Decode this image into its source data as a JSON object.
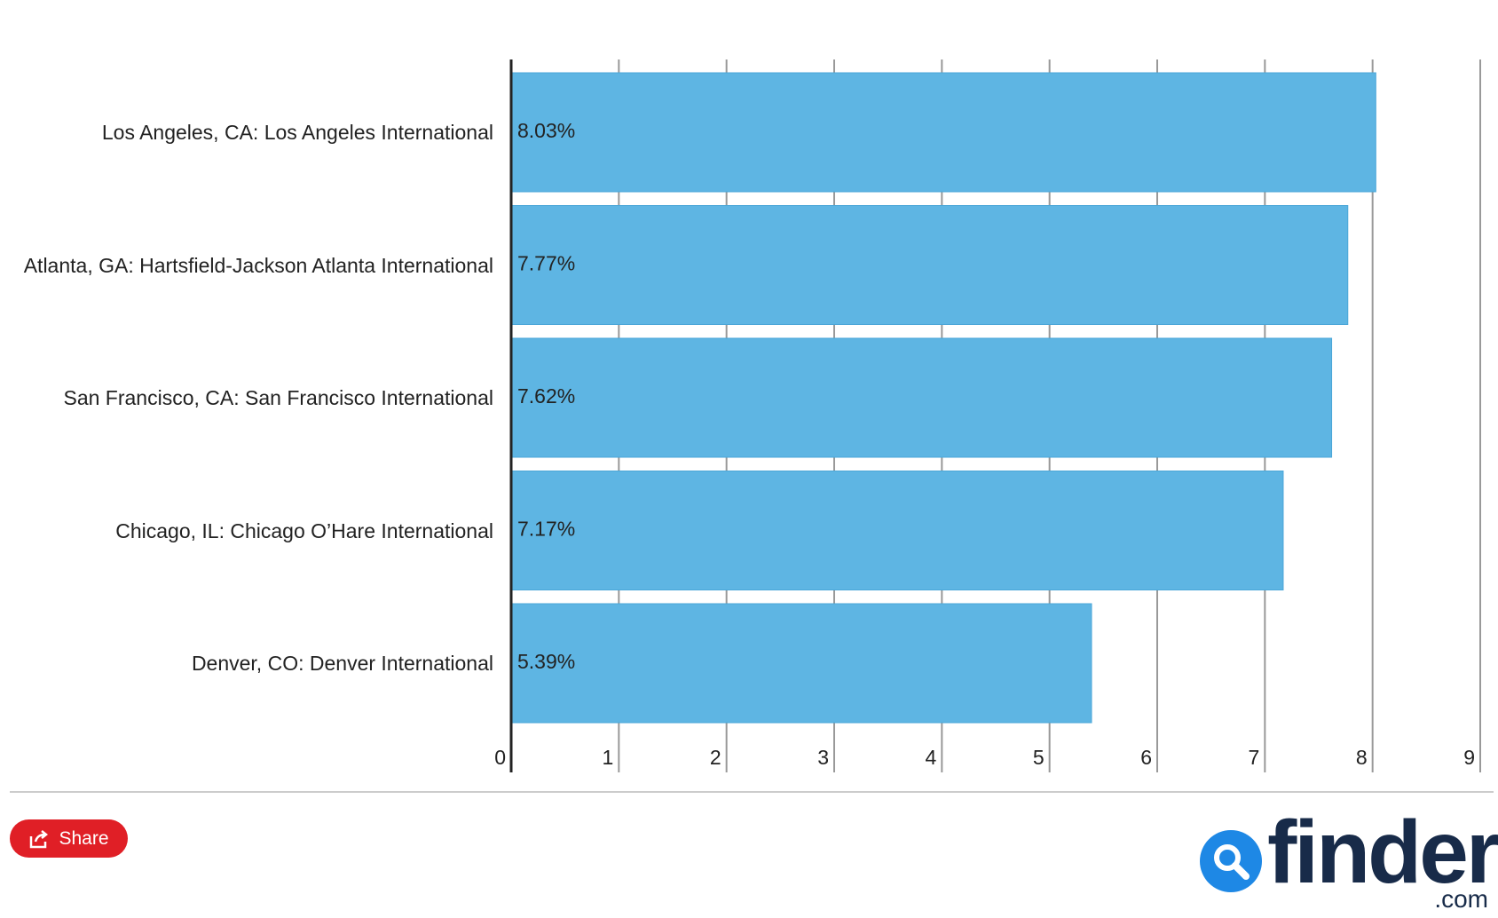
{
  "chart_data": {
    "type": "bar",
    "orientation": "horizontal",
    "categories": [
      "Los Angeles, CA: Los Angeles International",
      "Atlanta, GA: Hartsfield-Jackson Atlanta International",
      "San Francisco, CA: San Francisco International",
      "Chicago, IL: Chicago O’Hare International",
      "Denver, CO: Denver International"
    ],
    "values": [
      8.03,
      7.77,
      7.62,
      7.17,
      5.39
    ],
    "value_labels": [
      "8.03%",
      "7.77%",
      "7.62%",
      "7.17%",
      "5.39%"
    ],
    "color": "#5eb5e3",
    "xlim": [
      0,
      9
    ],
    "xticks": [
      0,
      1,
      2,
      3,
      4,
      5,
      6,
      7,
      8,
      9
    ],
    "grid": true
  },
  "footer": {
    "share": "Share",
    "logo": "finder",
    "logo_suffix": ".com"
  }
}
